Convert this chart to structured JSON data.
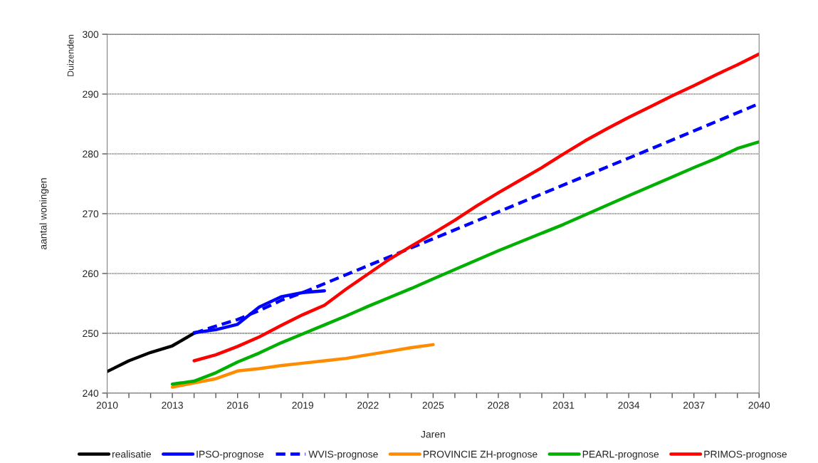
{
  "chart_data": {
    "type": "line",
    "xlabel": "Jaren",
    "ylabel": "aantal woningen",
    "annotations": [
      "Duizenden"
    ],
    "xlim": [
      2010,
      2040
    ],
    "ylim": [
      240,
      300
    ],
    "xticks": [
      2010,
      {
        "value": 2011,
        "label": null
      },
      {
        "value": 2012,
        "label": null
      },
      2013,
      {
        "value": 2014,
        "label": null
      },
      {
        "value": 2015,
        "label": null
      },
      2016,
      {
        "value": 2017,
        "label": null
      },
      {
        "value": 2018,
        "label": null
      },
      2019,
      {
        "value": 2020,
        "label": null
      },
      {
        "value": 2021,
        "label": null
      },
      2022,
      {
        "value": 2023,
        "label": null
      },
      {
        "value": 2024,
        "label": null
      },
      2025,
      {
        "value": 2026,
        "label": null
      },
      {
        "value": 2027,
        "label": null
      },
      2028,
      {
        "value": 2029,
        "label": null
      },
      {
        "value": 2030,
        "label": null
      },
      2031,
      {
        "value": 2032,
        "label": null
      },
      {
        "value": 2033,
        "label": null
      },
      2034,
      {
        "value": 2035,
        "label": null
      },
      {
        "value": 2036,
        "label": null
      },
      2037,
      {
        "value": 2038,
        "label": null
      },
      {
        "value": 2039,
        "label": null
      },
      2040
    ],
    "yticks": [
      240,
      250,
      260,
      270,
      280,
      290,
      300
    ],
    "grid": "y",
    "legend": "bottom",
    "marker": "none",
    "series": [
      {
        "name": "realisatie",
        "color": "#000000",
        "x": [
          2010,
          2011,
          2012,
          2013,
          2014
        ],
        "values": [
          243.6,
          245.4,
          246.8,
          247.9,
          250.0
        ]
      },
      {
        "name": "IPSO-prognose",
        "color": "#0000ff",
        "x": [
          2014,
          2015,
          2016,
          2017,
          2018,
          2019,
          2020
        ],
        "values": [
          250.1,
          250.6,
          251.5,
          254.4,
          256.1,
          256.8,
          257.1
        ]
      },
      {
        "name": "WVIS-prognose",
        "color": "#0000ff",
        "line_style": "dashed",
        "x": [
          2014,
          2015,
          2016,
          2017,
          2018,
          2019,
          2020,
          2025,
          2030,
          2035,
          2040
        ],
        "values": [
          250.0,
          251.2,
          252.3,
          253.8,
          255.5,
          256.8,
          258.3,
          265.8,
          273.3,
          280.8,
          288.4
        ]
      },
      {
        "name": "PROVINCIE ZH-prognose",
        "color": "#ff8c00",
        "x": [
          2013,
          2014,
          2015,
          2016,
          2017,
          2018,
          2019,
          2020,
          2021,
          2022,
          2023,
          2024,
          2025
        ],
        "values": [
          241.0,
          241.7,
          242.4,
          243.7,
          244.1,
          244.6,
          245.0,
          245.4,
          245.8,
          246.4,
          247.0,
          247.6,
          248.1
        ]
      },
      {
        "name": "PEARL-prognose",
        "color": "#00b000",
        "x": [
          2013,
          2014,
          2015,
          2016,
          2017,
          2018,
          2019,
          2020,
          2021,
          2022,
          2023,
          2024,
          2025,
          2028,
          2031,
          2034,
          2037,
          2038,
          2039,
          2040
        ],
        "values": [
          241.5,
          242.0,
          243.4,
          245.2,
          246.7,
          248.4,
          249.9,
          251.4,
          252.9,
          254.5,
          256.0,
          257.5,
          259.1,
          263.8,
          268.2,
          273.0,
          277.7,
          279.2,
          280.9,
          282.0
        ]
      },
      {
        "name": "PRIMOS-prognose",
        "color": "#ff0000",
        "x": [
          2014,
          2015,
          2016,
          2017,
          2018,
          2019,
          2020,
          2021,
          2022,
          2023,
          2024,
          2025,
          2026,
          2027,
          2028,
          2029,
          2030,
          2031,
          2032,
          2033,
          2034,
          2035,
          2036,
          2037,
          2038,
          2039,
          2040
        ],
        "values": [
          245.4,
          246.4,
          247.8,
          249.4,
          251.3,
          253.1,
          254.7,
          257.4,
          259.9,
          262.4,
          264.6,
          266.7,
          268.9,
          271.3,
          273.5,
          275.6,
          277.7,
          280.0,
          282.2,
          284.2,
          286.1,
          287.9,
          289.7,
          291.4,
          293.2,
          294.9,
          296.7
        ]
      }
    ]
  }
}
